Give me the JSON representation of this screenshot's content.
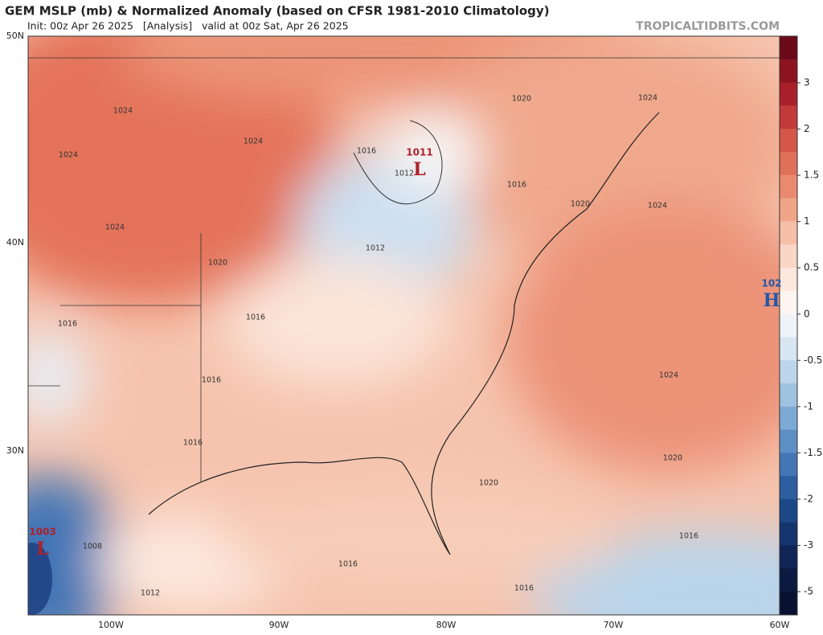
{
  "header": {
    "title": "GEM MSLP (mb) & Normalized Anomaly (based on CFSR 1981-2010 Climatology)",
    "subtitle": "Init: 00z Apr 26 2025   [Analysis]   valid at 00z Sat, Apr 26 2025",
    "credit": "TROPICALTIDBITS.COM"
  },
  "map": {
    "lat_labels": [
      "50N",
      "40N",
      "30N"
    ],
    "lon_labels": [
      "100W",
      "90W",
      "80W",
      "70W",
      "60W"
    ],
    "pressure_centers": [
      {
        "label": "1011",
        "symbol": "L"
      },
      {
        "label": "1003",
        "symbol": "L"
      },
      {
        "label": "102",
        "symbol": "H"
      }
    ],
    "contour_labels": [
      "1024",
      "1024",
      "1024",
      "1024",
      "1020",
      "1016",
      "1012",
      "1012",
      "1016",
      "1020",
      "1020",
      "1024",
      "1024",
      "1016",
      "1016",
      "1016",
      "1016",
      "1024",
      "1020",
      "1020",
      "1016",
      "1016",
      "1016",
      "1008",
      "1012"
    ]
  },
  "colorbar": {
    "ticks": [
      "3",
      "2",
      "1.5",
      "1",
      "0.5",
      "0",
      "-0.5",
      "-1",
      "-1.5",
      "-2",
      "-3",
      "-5"
    ]
  }
}
